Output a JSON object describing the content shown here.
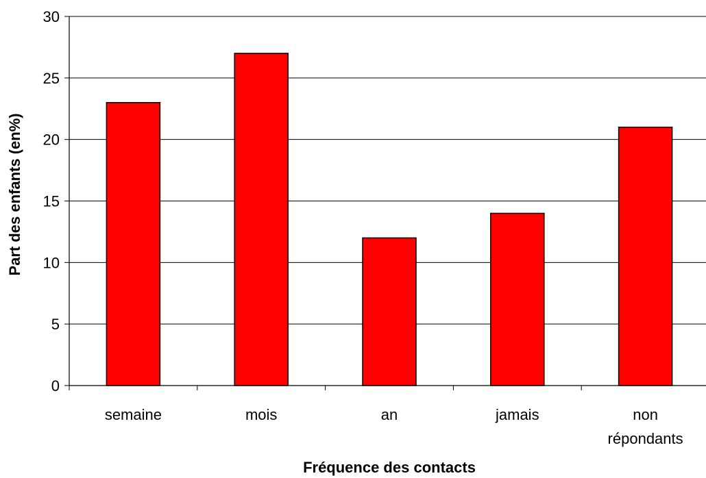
{
  "chart_data": {
    "type": "bar",
    "title": "",
    "xlabel": "Fréquence des contacts",
    "ylabel": "Part des enfants (en%)",
    "categories": [
      "semaine",
      "mois",
      "an",
      "jamais",
      "non répondants"
    ],
    "category_label_lines": [
      [
        "semaine"
      ],
      [
        "mois"
      ],
      [
        "an"
      ],
      [
        "jamais"
      ],
      [
        "non",
        "répondants"
      ]
    ],
    "values": [
      23,
      27,
      12,
      14,
      21
    ],
    "ylim": [
      0,
      30
    ],
    "yticks": [
      0,
      5,
      10,
      15,
      20,
      25,
      30
    ],
    "grid": true,
    "legend": "none",
    "colors": {
      "bar_fill": "#ff0000",
      "bar_stroke": "#000000",
      "grid": "#000000",
      "axis": "#000000"
    }
  }
}
